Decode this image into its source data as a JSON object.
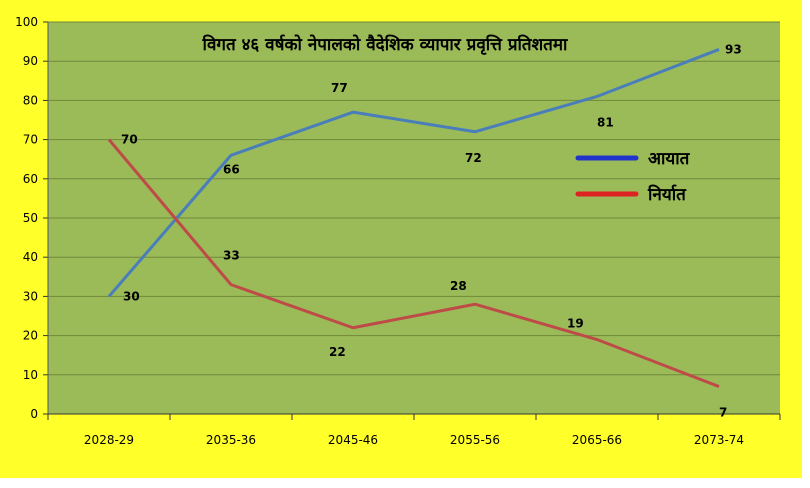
{
  "chart_data": {
    "type": "line",
    "title": "विगत ४६ वर्षको नेपालको वैदेशिक व्यापार प्रवृत्ति प्रतिशतमा",
    "categories": [
      "2028-29",
      "2035-36",
      "2045-46",
      "2055-56",
      "2065-66",
      "2073-74"
    ],
    "ylim": [
      0,
      100
    ],
    "yticks": [
      0,
      10,
      20,
      30,
      40,
      50,
      60,
      70,
      80,
      90,
      100
    ],
    "grid": true,
    "legend_position": "right",
    "series": [
      {
        "name": "आयात",
        "values": [
          30,
          66,
          77,
          72,
          81,
          93
        ],
        "color": "#4a7ebb",
        "legend_color": "#2233cc"
      },
      {
        "name": "निर्यात",
        "values": [
          70,
          33,
          22,
          28,
          19,
          7
        ],
        "color": "#be4b48",
        "legend_color": "#dd2222"
      }
    ]
  },
  "colors": {
    "plot_background": "#9bbb59",
    "outer_background": "#ffff2a",
    "gridline": "#6f8a3a"
  }
}
